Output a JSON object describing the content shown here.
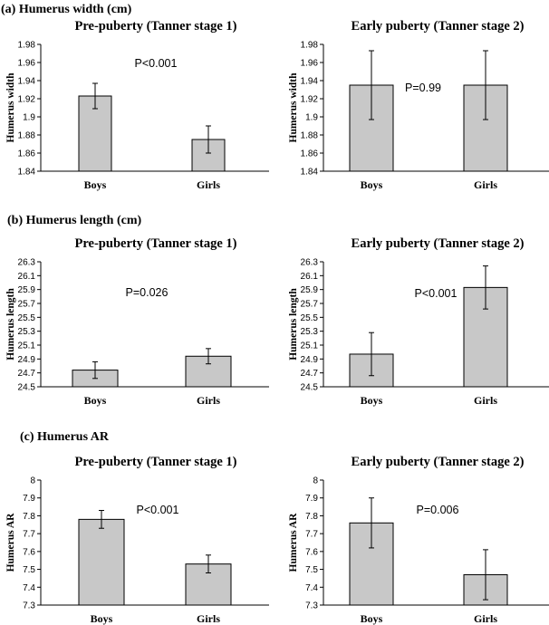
{
  "sections": [
    {
      "title": "(a) Humerus width (cm)"
    },
    {
      "title": "(b) Humerus length (cm)"
    },
    {
      "title": "(c) Humerus AR"
    }
  ],
  "chart_data": [
    {
      "type": "bar",
      "title": "Pre-puberty (Tanner stage 1)",
      "ylabel": "Humerus width",
      "categories": [
        "Boys",
        "Girls"
      ],
      "values": [
        1.923,
        1.875
      ],
      "errors": [
        0.014,
        0.015
      ],
      "ylim": [
        1.84,
        1.98
      ],
      "yticks": [
        "1.84",
        "1.86",
        "1.88",
        "1.9",
        "1.92",
        "1.94",
        "1.96",
        "1.98"
      ],
      "annotation": "P<0.001"
    },
    {
      "type": "bar",
      "title": "Early puberty (Tanner stage 2)",
      "ylabel": "Humerus width",
      "categories": [
        "Boys",
        "Girls"
      ],
      "values": [
        1.935,
        1.935
      ],
      "errors": [
        0.038,
        0.038
      ],
      "ylim": [
        1.84,
        1.98
      ],
      "yticks": [
        "1.84",
        "1.86",
        "1.88",
        "1.9",
        "1.92",
        "1.94",
        "1.96",
        "1.98"
      ],
      "annotation": "P=0.99"
    },
    {
      "type": "bar",
      "title": "Pre-puberty (Tanner stage 1)",
      "ylabel": "Humerus length",
      "categories": [
        "Boys",
        "Girls"
      ],
      "values": [
        24.74,
        24.94
      ],
      "errors": [
        0.12,
        0.11
      ],
      "ylim": [
        24.5,
        26.3
      ],
      "yticks": [
        "24.5",
        "24.7",
        "24.9",
        "25.1",
        "25.3",
        "25.5",
        "25.7",
        "25.9",
        "26.1",
        "26.3"
      ],
      "annotation": "P=0.026"
    },
    {
      "type": "bar",
      "title": "Early puberty (Tanner stage 2)",
      "ylabel": "Humerus length",
      "categories": [
        "Boys",
        "Girls"
      ],
      "values": [
        24.97,
        25.93
      ],
      "errors": [
        0.31,
        0.31
      ],
      "ylim": [
        24.5,
        26.3
      ],
      "yticks": [
        "24.5",
        "24.7",
        "24.9",
        "25.1",
        "25.3",
        "25.5",
        "25.7",
        "25.9",
        "26.1",
        "26.3"
      ],
      "annotation": "P<0.001"
    },
    {
      "type": "bar",
      "title": "Pre-puberty (Tanner stage 1)",
      "ylabel": "Humerus AR",
      "categories": [
        "Boys",
        "Girls"
      ],
      "values": [
        7.78,
        7.53
      ],
      "errors": [
        0.05,
        0.05
      ],
      "ylim": [
        7.3,
        8.0
      ],
      "yticks": [
        "7.3",
        "7.4",
        "7.5",
        "7.6",
        "7.7",
        "7.8",
        "7.9",
        "8"
      ],
      "annotation": "P<0.001"
    },
    {
      "type": "bar",
      "title": "Early puberty (Tanner stage 2)",
      "ylabel": "Humerus AR",
      "categories": [
        "Boys",
        "Girls"
      ],
      "values": [
        7.76,
        7.47
      ],
      "errors": [
        0.14,
        0.14
      ],
      "ylim": [
        7.3,
        8.0
      ],
      "yticks": [
        "7.3",
        "7.4",
        "7.5",
        "7.6",
        "7.7",
        "7.8",
        "7.9",
        "8"
      ],
      "annotation": "P=0.006"
    }
  ]
}
